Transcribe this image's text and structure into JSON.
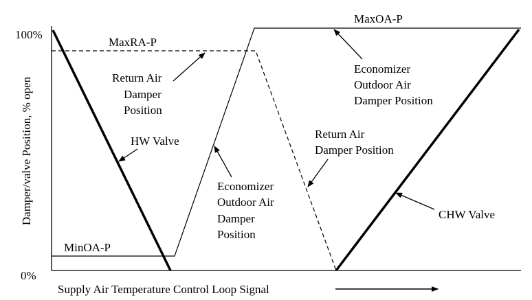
{
  "axes": {
    "y_label": "Damper/valve Position, % open",
    "y_top": "100%",
    "y_bottom": "0%",
    "x_label": "Supply Air Temperature Control Loop Signal"
  },
  "labels": {
    "max_ra_p": "MaxRA-P",
    "max_oa_p": "MaxOA-P",
    "min_oa_p": "MinOA-P",
    "return_air_left": [
      "Return Air",
      "Damper",
      "Position"
    ],
    "hw_valve": "HW Valve",
    "economizer_mid": [
      "Economizer",
      "Outdoor Air",
      "Damper",
      "Position"
    ],
    "economizer_right": [
      "Economizer",
      "Outdoor Air",
      "Damper Position"
    ],
    "return_air_right": [
      "Return Air",
      "Damper Position"
    ],
    "chw_valve": "CHW Valve"
  },
  "chart_data": {
    "type": "line",
    "xlabel": "Supply Air Temperature Control Loop Signal",
    "ylabel": "Damper/valve Position, % open",
    "ylim": [
      0,
      100
    ],
    "y_ticks": [
      "0%",
      "100%"
    ],
    "grid": false,
    "x_note": "loop signal 0-100 (unlabeled ticks)",
    "series": [
      {
        "name": "HW Valve",
        "style": "thick-solid",
        "x": [
          0,
          24
        ],
        "y": [
          100,
          0
        ]
      },
      {
        "name": "Economizer Outdoor Air Damper Position",
        "style": "thin-solid",
        "x": [
          0,
          25,
          44,
          100
        ],
        "y": [
          8,
          8,
          93,
          93
        ]
      },
      {
        "name": "Return Air Damper Position",
        "style": "dashed",
        "x": [
          0,
          43,
          60
        ],
        "y": [
          85,
          85,
          0
        ]
      },
      {
        "name": "CHW Valve",
        "style": "thick-solid",
        "x": [
          61,
          100
        ],
        "y": [
          0,
          93
        ]
      }
    ]
  }
}
